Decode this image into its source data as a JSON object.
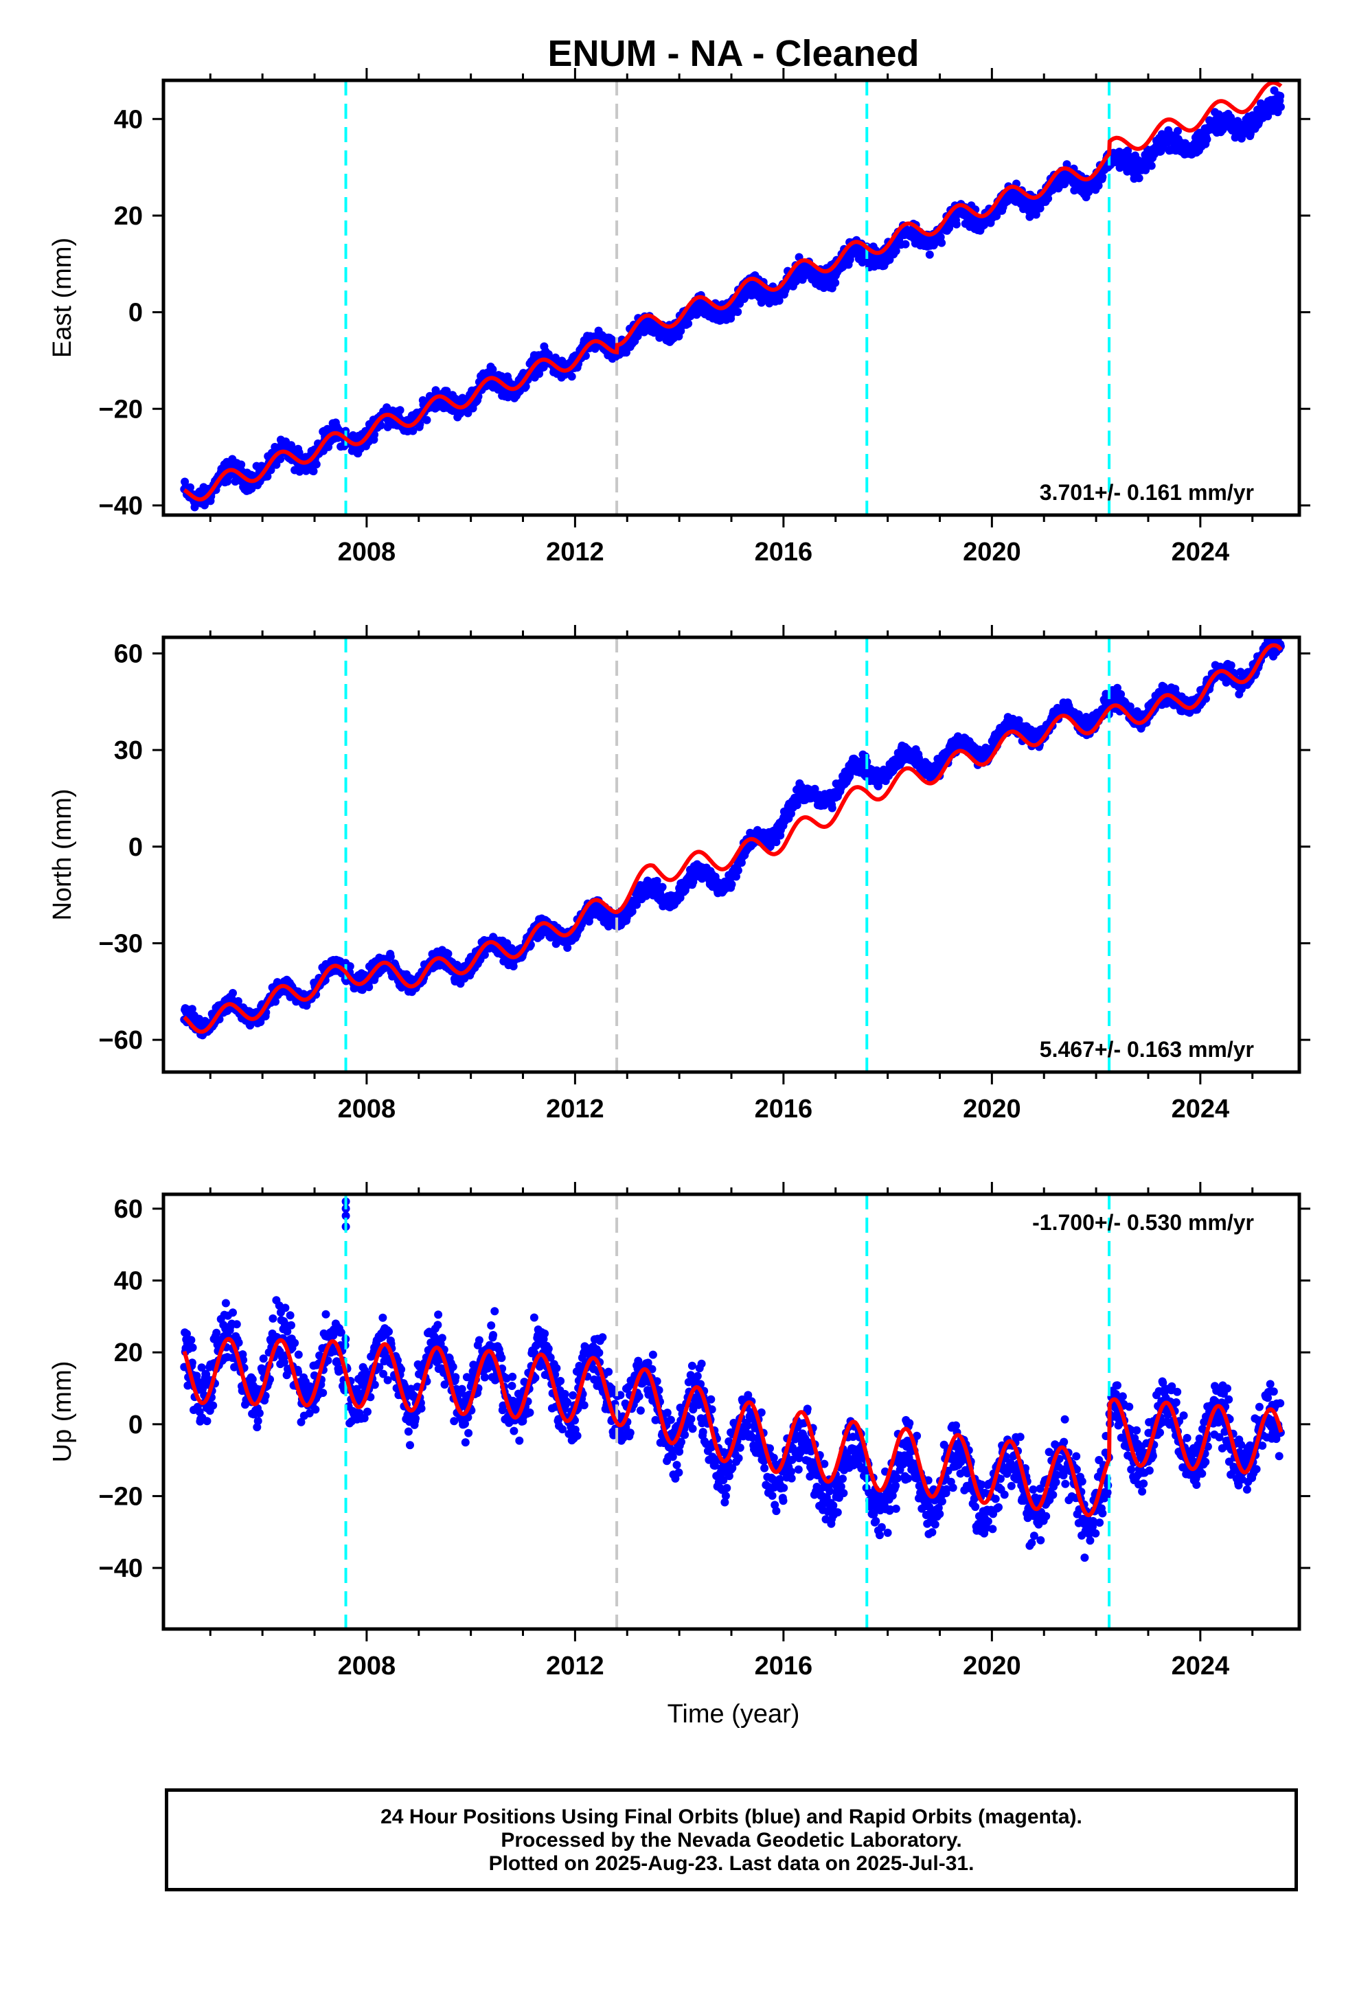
{
  "title": "ENUM  - NA - Cleaned",
  "xlabel": "Time (year)",
  "caption": {
    "line1": "24 Hour Positions Using Final Orbits (blue) and Rapid Orbits (magenta).",
    "line2": "Processed by the Nevada Geodetic Laboratory.",
    "line3": "Plotted on 2025-Aug-23. Last data on 2025-Jul-31."
  },
  "colors": {
    "data": "#0000ff",
    "model": "#ff0000",
    "equipment_change": "#00ffff",
    "other_event": "#c8c8c8",
    "frame": "#000000"
  },
  "chart_data": [
    {
      "type": "scatter",
      "panel": "east",
      "ylabel": "East (mm)",
      "xlim": [
        2004.1,
        2025.9
      ],
      "ylim": [
        -42,
        48
      ],
      "yticks": [
        -40,
        -20,
        0,
        20,
        40
      ],
      "xticks": [
        2008,
        2012,
        2016,
        2020,
        2024
      ],
      "rate_text": "3.701+/- 0.161 mm/yr",
      "rate_placement": "bottom-right",
      "events_cyan": [
        2007.6,
        2017.6,
        2022.25
      ],
      "events_gray": [
        2012.8
      ],
      "trend": {
        "start": [
          2004.5,
          -38
        ],
        "end": [
          2025.5,
          42
        ]
      },
      "seasonal_amplitude": 2.0,
      "scatter_noise": 1.5,
      "offsets": [
        {
          "x": 2012.8,
          "y": 1.5
        },
        {
          "x": 2022.25,
          "y": 2.5
        }
      ]
    },
    {
      "type": "scatter",
      "panel": "north",
      "ylabel": "North (mm)",
      "xlim": [
        2004.1,
        2025.9
      ],
      "ylim": [
        -70,
        65
      ],
      "yticks": [
        -60,
        -30,
        0,
        30,
        60
      ],
      "xticks": [
        2008,
        2012,
        2016,
        2020,
        2024
      ],
      "rate_text": "5.467+/- 0.163 mm/yr",
      "rate_placement": "bottom-right",
      "events_cyan": [
        2007.6,
        2017.6,
        2022.25
      ],
      "events_gray": [
        2012.8
      ],
      "model_points": {
        "x": [
          2004.5,
          2005.5,
          2007.0,
          2007.6,
          2009.0,
          2011.0,
          2012.8,
          2013.5,
          2015.0,
          2016.0,
          2017.6,
          2019.0,
          2021.0,
          2022.25,
          2023.5,
          2025.5
        ],
        "y": [
          -55,
          -52,
          -43,
          -39,
          -40,
          -30,
          -17,
          -8,
          -3,
          2,
          17,
          24,
          36,
          40,
          44,
          60
        ]
      },
      "data_points": {
        "x": [
          2004.5,
          2005.5,
          2007.0,
          2007.6,
          2009.0,
          2011.0,
          2012.8,
          2013.5,
          2015.0,
          2016.0,
          2017.6,
          2019.0,
          2021.0,
          2022.25,
          2023.5,
          2025.5
        ],
        "y": [
          -53,
          -52,
          -43,
          -39,
          -40,
          -30,
          -20,
          -15,
          -8,
          10,
          24,
          27,
          38,
          42,
          44,
          60
        ]
      },
      "seasonal_amplitude": 3.5,
      "scatter_noise": 2.0
    },
    {
      "type": "scatter",
      "panel": "up",
      "ylabel": "Up (mm)",
      "xlim": [
        2004.1,
        2025.9
      ],
      "ylim": [
        -57,
        64
      ],
      "yticks": [
        -40,
        -20,
        0,
        20,
        40,
        60
      ],
      "xticks": [
        2008,
        2012,
        2016,
        2020,
        2024
      ],
      "rate_text": "-1.700+/- 0.530 mm/yr",
      "rate_placement": "top-right",
      "events_cyan": [
        2007.6,
        2017.6,
        2022.25
      ],
      "events_gray": [
        2012.8
      ],
      "model_points": {
        "x": [
          2004.5,
          2007.6,
          2012.8,
          2015.0,
          2017.6,
          2022.25,
          2022.26,
          2025.5
        ],
        "y": [
          15,
          14,
          9,
          -2,
          -9,
          -17,
          -2,
          -5
        ]
      },
      "data_points": {
        "x": [
          2004.5,
          2007.6,
          2012.8,
          2015.0,
          2017.6,
          2022.25,
          2022.26,
          2025.5
        ],
        "y": [
          17,
          15,
          10,
          -5,
          -15,
          -18,
          -2,
          -5
        ]
      },
      "seasonal_amplitude": 9.0,
      "scatter_noise": 6.0,
      "outliers": {
        "x": 2007.6,
        "y": [
          55,
          58,
          60,
          62
        ]
      }
    }
  ]
}
